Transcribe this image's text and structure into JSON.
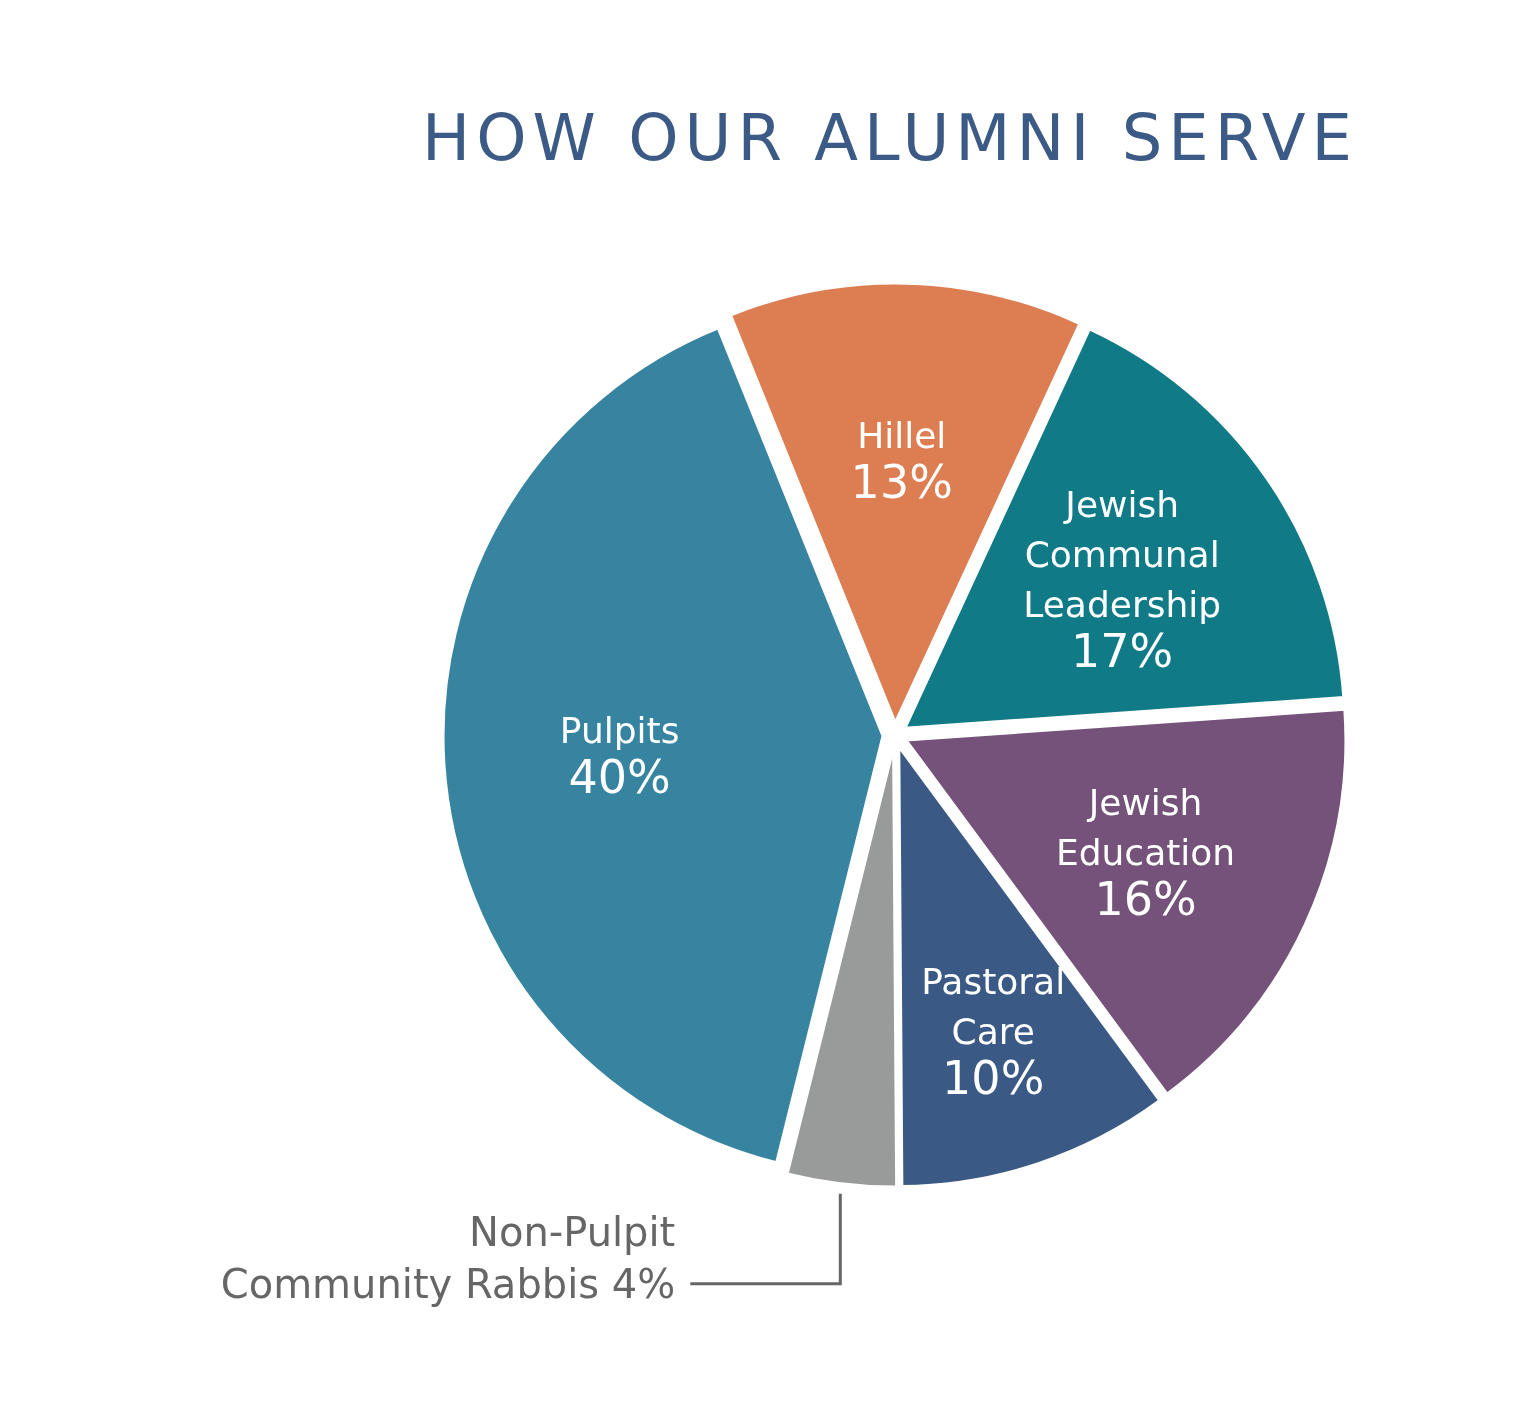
{
  "chart_data": {
    "type": "pie",
    "title": "HOW OUR ALUMNI SERVE",
    "categories": [
      "Hillel",
      "Jewish Communal Leadership",
      "Jewish Education",
      "Pastoral Care",
      "Non-Pulpit Community Rabbis",
      "Pulpits"
    ],
    "values": [
      13,
      17,
      16,
      10,
      4,
      40
    ],
    "value_labels": [
      "13%",
      "17%",
      "16%",
      "10%",
      "4%",
      "40%"
    ],
    "colors": [
      "#dc7e51",
      "#107a87",
      "#74527a",
      "#3a5a85",
      "#999b9a",
      "#3784a1"
    ]
  }
}
